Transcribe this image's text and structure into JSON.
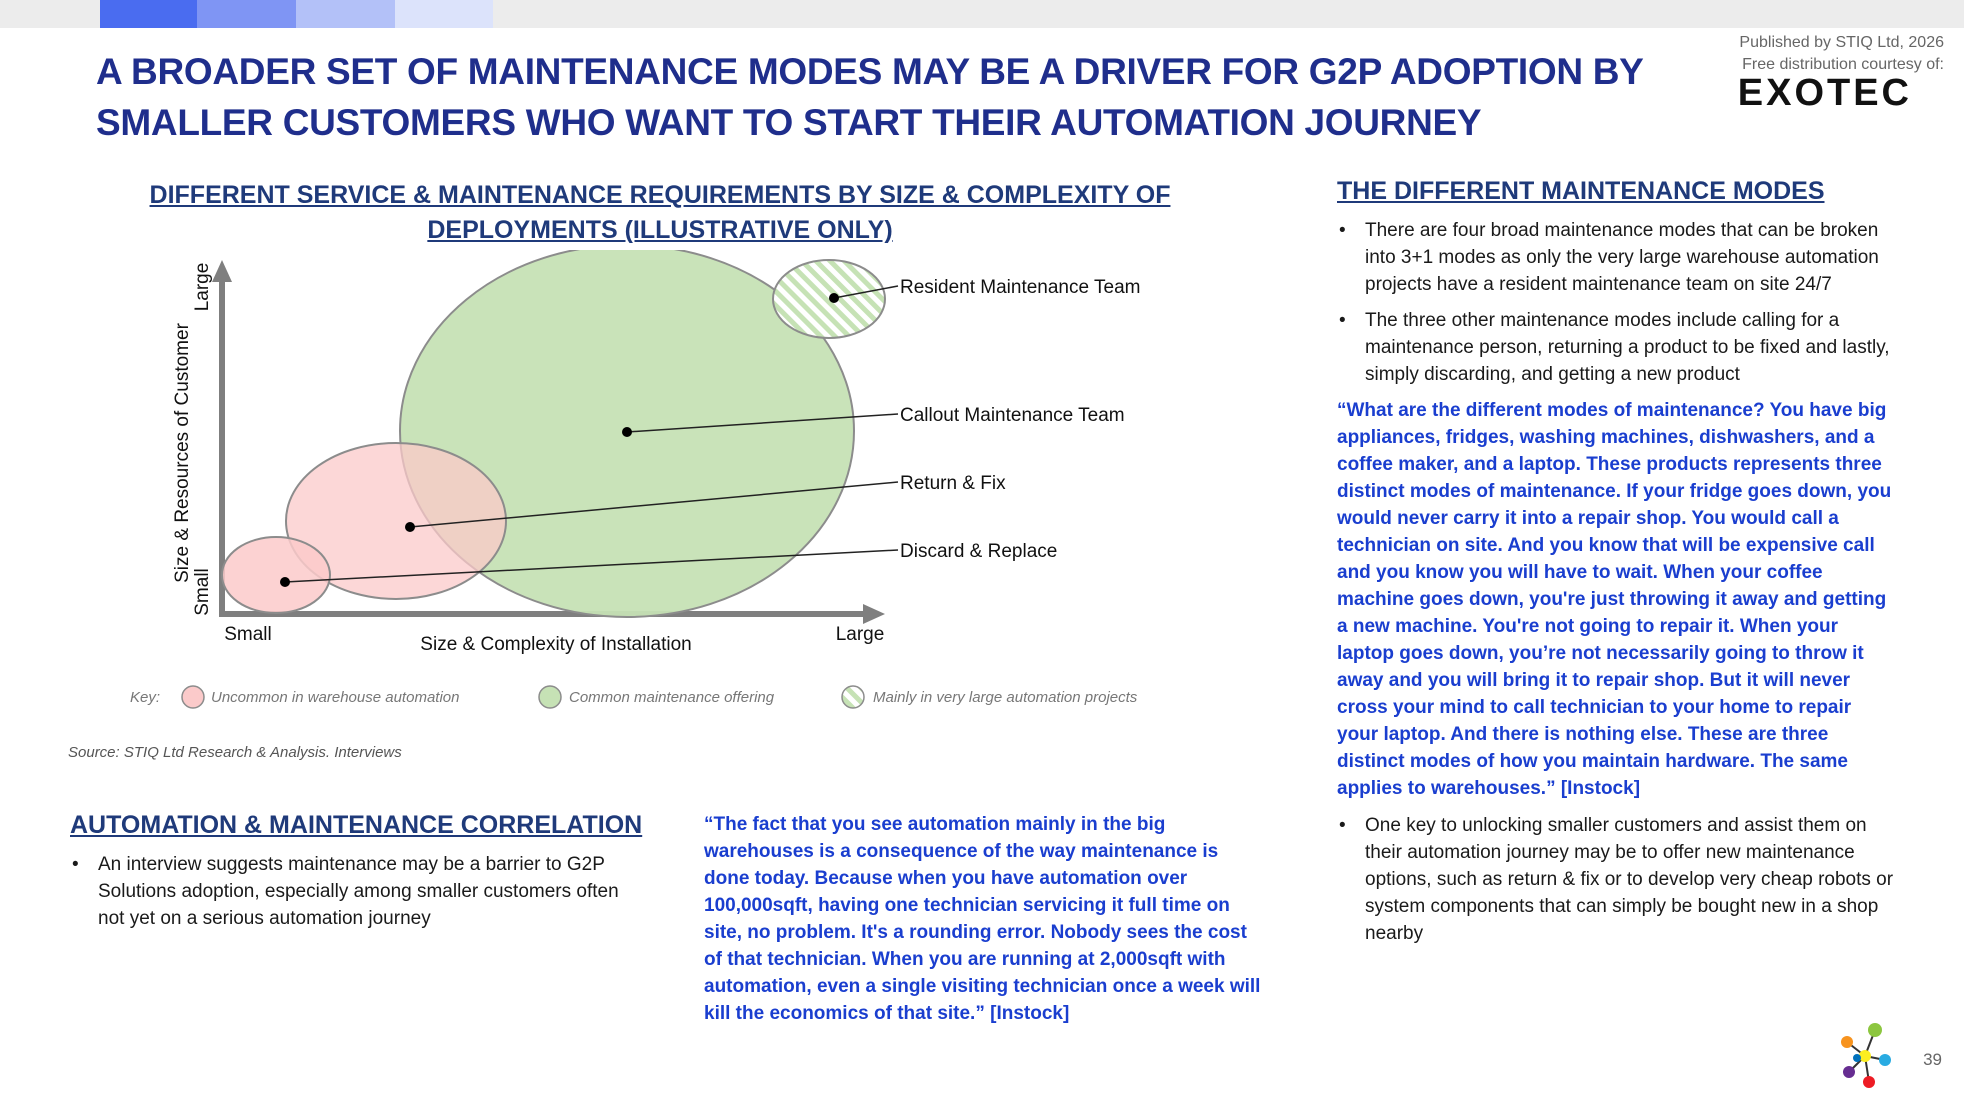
{
  "publisher": {
    "line1": "Published by STIQ Ltd, 2026",
    "line2": "Free distribution courtesy of:",
    "sponsor": "EXOTEC"
  },
  "title": "A BROADER SET OF MAINTENANCE MODES MAY BE A DRIVER FOR G2P ADOPTION BY SMALLER CUSTOMERS WHO WANT TO START THEIR AUTOMATION JOURNEY",
  "chart": {
    "title": "DIFFERENT SERVICE & MAINTENANCE REQUIREMENTS BY SIZE & COMPLEXITY OF DEPLOYMENTS (ILLUSTRATIVE ONLY)",
    "y_axis": {
      "label": "Size & Resources of Customer",
      "low": "Small",
      "high": "Large"
    },
    "x_axis": {
      "label": "Size & Complexity of Installation",
      "low": "Small",
      "high": "Large"
    },
    "bubbles": {
      "resident": "Resident Maintenance Team",
      "callout": "Callout Maintenance Team",
      "return_fix": "Return & Fix",
      "discard": "Discard & Replace"
    },
    "key": {
      "label": "Key:",
      "uncommon": "Uncommon in warehouse automation",
      "common": "Common maintenance offering",
      "large": "Mainly in very large automation projects"
    },
    "colors": {
      "pink": "#fbcaca",
      "green": "#c6e2b5",
      "hatch": "#c6e2b5"
    }
  },
  "source": "Source: STIQ Ltd Research & Analysis. Interviews",
  "correlation": {
    "heading": "AUTOMATION & MAINTENANCE CORRELATION",
    "bullet": "An interview suggests maintenance may be a barrier to G2P Solutions adoption, especially among smaller customers often not yet on a serious automation journey"
  },
  "quote_left": "“The fact that you see automation mainly in the big warehouses is a consequence of the way maintenance is done today. Because when you have automation over 100,000sqft, having one technician servicing it full time on site, no problem. It's a rounding error. Nobody sees the cost of that technician. When you are running at 2,000sqft with automation, even a single visiting technician once a week will kill the economics of that site.” [Instock]",
  "modes": {
    "heading": "THE DIFFERENT MAINTENANCE MODES",
    "bullet1": "There are four broad maintenance modes that can be broken into 3+1 modes as only the very large warehouse automation projects have a resident maintenance team on site 24/7",
    "bullet2": "The three other maintenance modes include calling for a maintenance person, returning a product to be fixed and lastly, simply discarding, and getting a new product",
    "quote": "“What are the different modes of maintenance? You have big appliances, fridges, washing machines, dishwashers, and a coffee maker, and a laptop. These products represents three distinct modes of maintenance. If your fridge goes down, you would never carry it into a repair shop. You would call a technician on site. And you know that will be expensive call and you know you will have to wait. When your coffee machine goes down, you're just throwing it away and getting a new machine. You're not going to repair it. When your laptop goes down, you’re not necessarily going to throw it away and you will bring it to repair shop. But it will never cross your mind to call technician to your home to repair your laptop. And there is nothing else. These are three distinct modes of how you maintain hardware. The same applies to warehouses.” [Instock]",
    "bullet3": "One key to unlocking smaller customers and assist them on their automation journey may be to offer new maintenance options, such as return & fix or to develop very cheap robots or system components that can simply be bought new in a shop nearby"
  },
  "page_number": "39"
}
